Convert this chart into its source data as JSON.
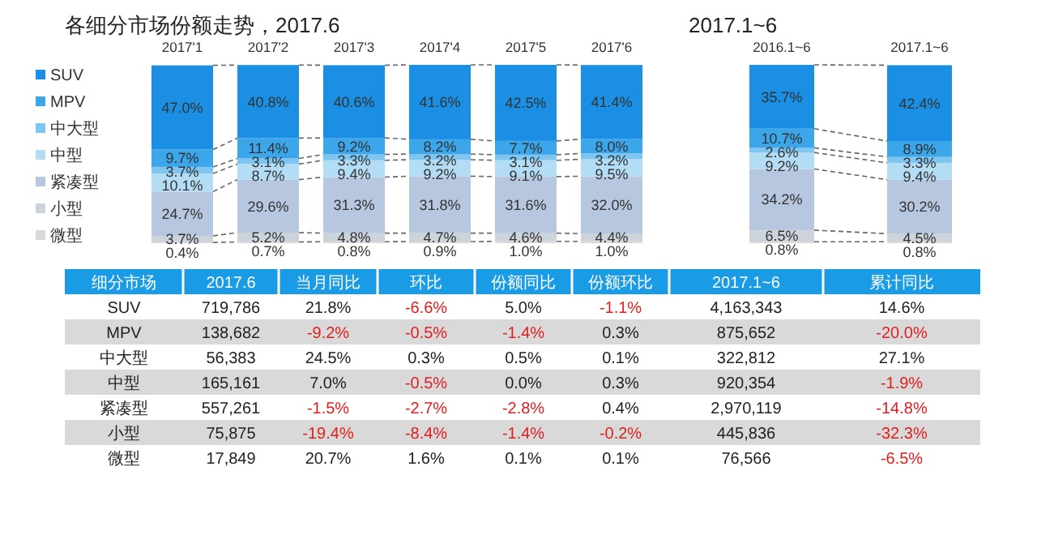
{
  "chart_data": [
    {
      "type": "bar",
      "title": "各细分市场份额走势，2017.6",
      "stacked": true,
      "legend": "left",
      "tick_labels": "x",
      "data_labels": true,
      "categories": [
        "2017'1",
        "2017'2",
        "2017'3",
        "2017'4",
        "2017'5",
        "2017'6"
      ],
      "series": [
        {
          "name": "微型",
          "color": "#d9d9d9",
          "values": [
            0.4,
            0.7,
            0.8,
            0.9,
            1.0,
            1.0
          ],
          "value_labels": [
            "0.4%",
            "0.7%",
            "0.8%",
            "0.9%",
            "1.0%",
            "1.0%"
          ]
        },
        {
          "name": "小型",
          "color": "#cdd3db",
          "values": [
            3.7,
            5.2,
            4.8,
            4.7,
            4.6,
            4.4
          ],
          "value_labels": [
            "3.7%",
            "5.2%",
            "4.8%",
            "4.7%",
            "4.6%",
            "4.4%"
          ]
        },
        {
          "name": "紧凑型",
          "color": "#b7c7df",
          "values": [
            24.7,
            29.6,
            31.3,
            31.8,
            31.6,
            32.0
          ],
          "value_labels": [
            "24.7%",
            "29.6%",
            "31.3%",
            "31.8%",
            "31.6%",
            "32.0%"
          ]
        },
        {
          "name": "中型",
          "color": "#b3dcf5",
          "values": [
            10.1,
            8.7,
            9.4,
            9.2,
            9.1,
            9.5
          ],
          "value_labels": [
            "10.1%",
            "8.7%",
            "9.4%",
            "9.2%",
            "9.1%",
            "9.5%"
          ]
        },
        {
          "name": "中大型",
          "color": "#7ec5f0",
          "values": [
            3.7,
            3.1,
            3.3,
            3.2,
            3.1,
            3.2
          ],
          "value_labels": [
            "3.7%",
            "3.1%",
            "3.3%",
            "3.2%",
            "3.1%",
            "3.2%"
          ]
        },
        {
          "name": "MPV",
          "color": "#3ba6ea",
          "values": [
            9.7,
            11.4,
            9.2,
            8.2,
            7.7,
            8.0
          ],
          "value_labels": [
            "9.7%",
            "11.4%",
            "9.2%",
            "8.2%",
            "7.7%",
            "8.0%"
          ]
        },
        {
          "name": "SUV",
          "color": "#1a8fe3",
          "values": [
            47.0,
            40.8,
            40.6,
            41.6,
            42.5,
            41.4
          ],
          "value_labels": [
            "47.0%",
            "40.8%",
            "40.6%",
            "41.6%",
            "42.5%",
            "41.4%"
          ]
        }
      ]
    },
    {
      "type": "bar",
      "title": "2017.1~6",
      "stacked": true,
      "tick_labels": "x",
      "data_labels": true,
      "categories": [
        "2016.1~6",
        "2017.1~6"
      ],
      "series": [
        {
          "color": "#d9d9d9",
          "values": [
            0.8,
            0.8
          ],
          "value_labels": [
            "0.8%",
            "0.8%"
          ]
        },
        {
          "color": "#cdd3db",
          "values": [
            6.5,
            4.5
          ],
          "value_labels": [
            "6.5%",
            "4.5%"
          ]
        },
        {
          "color": "#b7c7df",
          "values": [
            34.2,
            30.2
          ],
          "value_labels": [
            "34.2%",
            "30.2%"
          ]
        },
        {
          "color": "#b3dcf5",
          "values": [
            9.2,
            9.4
          ],
          "value_labels": [
            "9.2%",
            "9.4%"
          ]
        },
        {
          "color": "#7ec5f0",
          "values": [
            2.6,
            3.3
          ],
          "value_labels": [
            "2.6%",
            "3.3%"
          ]
        },
        {
          "color": "#3ba6ea",
          "values": [
            10.7,
            8.9
          ],
          "value_labels": [
            "10.7%",
            "8.9%"
          ]
        },
        {
          "color": "#1a8fe3",
          "values": [
            35.7,
            42.4
          ],
          "value_labels": [
            "35.7%",
            "42.4%"
          ]
        }
      ]
    },
    {
      "type": "other",
      "categories": [
        "细分市场",
        "2017.6",
        "当月同比",
        "环比",
        "份额同比",
        "份额环比",
        "2017.1~6",
        "累计同比"
      ],
      "y_categories": [
        "SUV",
        "MPV",
        "中大型",
        "中型",
        "紧凑型",
        "小型",
        "微型"
      ],
      "cell_labels": [
        [
          "719,786",
          "21.8%",
          "-6.6%",
          "5.0%",
          "-1.1%",
          "4,163,343",
          "14.6%"
        ],
        [
          "138,682",
          "-9.2%",
          "-0.5%",
          "-1.4%",
          "0.3%",
          "875,652",
          "-20.0%"
        ],
        [
          "56,383",
          "24.5%",
          "0.3%",
          "0.5%",
          "0.1%",
          "322,812",
          "27.1%"
        ],
        [
          "165,161",
          "7.0%",
          "-0.5%",
          "0.0%",
          "0.3%",
          "920,354",
          "-1.9%"
        ],
        [
          "557,261",
          "-1.5%",
          "-2.7%",
          "-2.8%",
          "0.4%",
          "2,970,119",
          "-14.8%"
        ],
        [
          "75,875",
          "-19.4%",
          "-8.4%",
          "-1.4%",
          "-0.2%",
          "445,836",
          "-32.3%"
        ],
        [
          "17,849",
          "20.7%",
          "1.6%",
          "0.1%",
          "0.1%",
          "76,566",
          "-6.5%"
        ]
      ]
    }
  ]
}
